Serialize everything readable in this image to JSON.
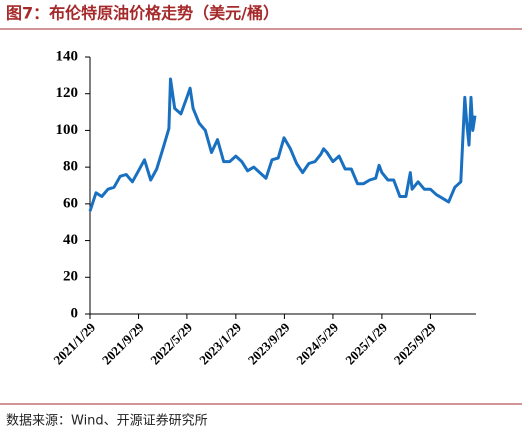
{
  "chart_data": {
    "type": "line",
    "title": "图7：布伦特原油价格走势（美元/桶）",
    "source": "数据来源：Wind、开源证券研究所",
    "color": "#1a70c0",
    "x": [
      "2021/1/29",
      "2021/2/28",
      "2021/3/29",
      "2021/4/29",
      "2021/5/29",
      "2021/6/29",
      "2021/7/29",
      "2021/8/29",
      "2021/9/29",
      "2021/10/29",
      "2021/11/29",
      "2021/12/29",
      "2022/1/29",
      "2022/2/28",
      "2022/3/8",
      "2022/3/29",
      "2022/4/29",
      "2022/5/29",
      "2022/6/14",
      "2022/6/29",
      "2022/7/29",
      "2022/8/29",
      "2022/9/29",
      "2022/10/29",
      "2022/11/29",
      "2022/12/29",
      "2023/1/29",
      "2023/2/28",
      "2023/3/29",
      "2023/4/29",
      "2023/5/29",
      "2023/6/29",
      "2023/7/29",
      "2023/8/29",
      "2023/9/27",
      "2023/10/29",
      "2023/11/29",
      "2023/12/29",
      "2024/1/29",
      "2024/2/29",
      "2024/3/29",
      "2024/4/12",
      "2024/4/29",
      "2024/5/29",
      "2024/6/29",
      "2024/7/29",
      "2024/8/29",
      "2024/9/29",
      "2024/10/29",
      "2024/11/29",
      "2024/12/29",
      "2025/1/15",
      "2025/1/29",
      "2025/2/28",
      "2025/3/29",
      "2025/4/29",
      "2025/5/29",
      "2025/6/20",
      "2025/6/29",
      "2025/7/29",
      "2025/8/29",
      "2025/9/29",
      "2025/10/29",
      "2025/11/29",
      "2025/12/29",
      "2026/1/29",
      "2026/2/28",
      "2026/3/10",
      "2026/3/20",
      "2026/3/29",
      "2026/4/10",
      "2026/4/20",
      "2026/4/29",
      "2026/5/10"
    ],
    "values": [
      56,
      66,
      64,
      68,
      69,
      75,
      76,
      72,
      78,
      84,
      73,
      79,
      90,
      101,
      128,
      112,
      109,
      118,
      123,
      112,
      104,
      100,
      88,
      95,
      83,
      83,
      86,
      83,
      78,
      80,
      77,
      74,
      84,
      85,
      96,
      90,
      82,
      77,
      82,
      83,
      87,
      90,
      88,
      83,
      86,
      79,
      79,
      71,
      71,
      73,
      74,
      81,
      77,
      73,
      73,
      64,
      64,
      77,
      68,
      72,
      68,
      68,
      65,
      63,
      61,
      69,
      72,
      95,
      118,
      105,
      92,
      118,
      100,
      108
    ],
    "xlim": [
      "2021/1/29",
      "2026/5/15"
    ],
    "xticks": [
      "2021/1/29",
      "2021/9/29",
      "2022/5/29",
      "2023/1/29",
      "2023/9/29",
      "2024/5/29",
      "2025/1/29",
      "2025/9/29"
    ],
    "ylim": [
      0,
      140
    ],
    "yticks": [
      0,
      20,
      40,
      60,
      80,
      100,
      120,
      140
    ]
  }
}
